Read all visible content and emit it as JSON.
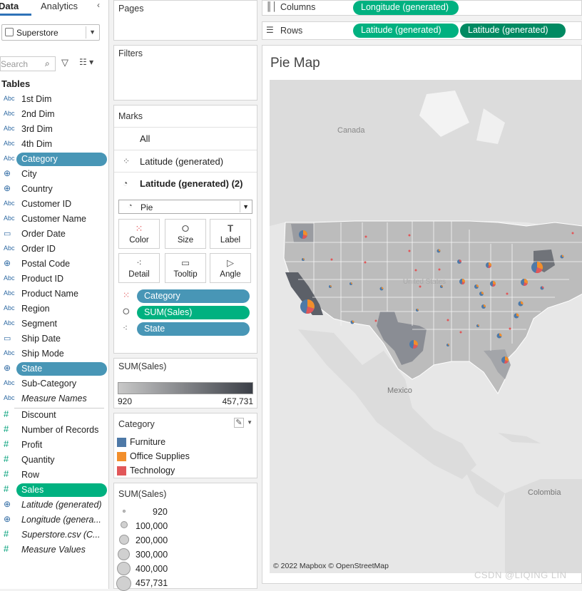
{
  "left_pane": {
    "tab_data": "Data",
    "tab_analytics": "Analytics",
    "datasource": "Superstore",
    "search_placeholder": "Search",
    "tables_heading": "Tables",
    "fields": [
      {
        "type": "Abc",
        "label": "1st Dim",
        "kind": "dim"
      },
      {
        "type": "Abc",
        "label": "2nd Dim",
        "kind": "dim"
      },
      {
        "type": "Abc",
        "label": "3rd Dim",
        "kind": "dim"
      },
      {
        "type": "Abc",
        "label": "4th Dim",
        "kind": "dim"
      },
      {
        "type": "Abc",
        "label": "Category",
        "kind": "dim",
        "selected": "blue"
      },
      {
        "type": "⊕",
        "label": "City",
        "kind": "geo"
      },
      {
        "type": "⊕",
        "label": "Country",
        "kind": "geo"
      },
      {
        "type": "Abc",
        "label": "Customer ID",
        "kind": "dim"
      },
      {
        "type": "Abc",
        "label": "Customer Name",
        "kind": "dim"
      },
      {
        "type": "▭",
        "label": "Order Date",
        "kind": "date"
      },
      {
        "type": "Abc",
        "label": "Order ID",
        "kind": "dim"
      },
      {
        "type": "⊕",
        "label": "Postal Code",
        "kind": "geo"
      },
      {
        "type": "Abc",
        "label": "Product ID",
        "kind": "dim"
      },
      {
        "type": "Abc",
        "label": "Product Name",
        "kind": "dim"
      },
      {
        "type": "Abc",
        "label": "Region",
        "kind": "dim"
      },
      {
        "type": "Abc",
        "label": "Segment",
        "kind": "dim"
      },
      {
        "type": "▭",
        "label": "Ship Date",
        "kind": "date"
      },
      {
        "type": "Abc",
        "label": "Ship Mode",
        "kind": "dim"
      },
      {
        "type": "⊕",
        "label": "State",
        "kind": "geo",
        "selected": "blue"
      },
      {
        "type": "Abc",
        "label": "Sub-Category",
        "kind": "dim"
      },
      {
        "type": "Abc",
        "label": "Measure Names",
        "kind": "dim",
        "italic": true
      },
      {
        "type": "#",
        "label": "Discount",
        "kind": "meas"
      },
      {
        "type": "#",
        "label": "Number of Records",
        "kind": "meas"
      },
      {
        "type": "#",
        "label": "Profit",
        "kind": "meas"
      },
      {
        "type": "#",
        "label": "Quantity",
        "kind": "meas"
      },
      {
        "type": "#",
        "label": "Row",
        "kind": "meas"
      },
      {
        "type": "#",
        "label": "Sales",
        "kind": "meas",
        "selected": "green"
      },
      {
        "type": "⊕",
        "label": "Latitude (generated)",
        "kind": "geo",
        "italic": true
      },
      {
        "type": "⊕",
        "label": "Longitude (genera...",
        "kind": "geo",
        "italic": true
      },
      {
        "type": "#",
        "label": "Superstore.csv (C...",
        "kind": "meas",
        "italic": true
      },
      {
        "type": "#",
        "label": "Measure Values",
        "kind": "meas",
        "italic": true
      }
    ]
  },
  "pages": {
    "heading": "Pages"
  },
  "filters": {
    "heading": "Filters"
  },
  "marks": {
    "heading": "Marks",
    "all": "All",
    "layer1": "Latitude (generated)",
    "layer2": "Latitude (generated) (2)",
    "mark_type": "Pie",
    "buttons": {
      "color": "Color",
      "size": "Size",
      "label": "Label",
      "detail": "Detail",
      "tooltip": "Tooltip",
      "angle": "Angle"
    },
    "pills": {
      "category": "Category",
      "sum_sales": "SUM(Sales)",
      "state": "State"
    }
  },
  "legend_color_sales": {
    "heading": "SUM(Sales)",
    "min": "920",
    "max": "457,731"
  },
  "legend_category": {
    "heading": "Category",
    "items": [
      {
        "label": "Furniture",
        "color": "#4e79a7"
      },
      {
        "label": "Office Supplies",
        "color": "#f28e2b"
      },
      {
        "label": "Technology",
        "color": "#e15759"
      }
    ]
  },
  "legend_size_sales": {
    "heading": "SUM(Sales)",
    "items": [
      "920",
      "100,000",
      "200,000",
      "300,000",
      "400,000",
      "457,731"
    ]
  },
  "shelves": {
    "columns_label": "Columns",
    "columns_pill": "Longitude (generated)",
    "rows_label": "Rows",
    "rows_pill1": "Latitude (generated)",
    "rows_pill2": "Latitude (generated)"
  },
  "viz": {
    "title": "Pie Map",
    "map_labels": {
      "canada": "Canada",
      "mexico": "Mexico",
      "colombia": "Colombia",
      "us": "United States"
    },
    "attribution": "© 2022 Mapbox © OpenStreetMap",
    "watermark": "CSDN @LIQING LIN"
  },
  "colors": {
    "dim_pill": "#4896b6",
    "meas_pill": "#00b180",
    "furniture": "#4e79a7",
    "office": "#f28e2b",
    "tech": "#e15759"
  }
}
